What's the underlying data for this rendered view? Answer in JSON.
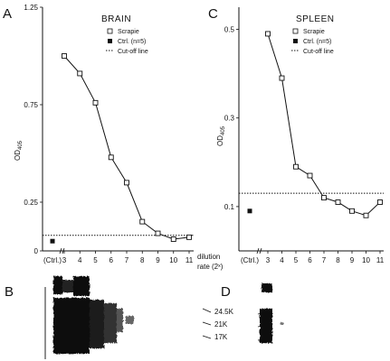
{
  "panels": {
    "a": {
      "letter": "A"
    },
    "b": {
      "letter": "B"
    },
    "c": {
      "letter": "C"
    },
    "d": {
      "letter": "D"
    }
  },
  "axis_note": {
    "line1": "dilution",
    "line2": "rate (2ˣ)"
  },
  "blot_markers": [
    "24.5K",
    "21K",
    "17K"
  ],
  "chart_data": [
    {
      "type": "line",
      "title": "BRAIN",
      "ylabel": "OD405",
      "ylabel_main": "OD",
      "ylabel_sub": "405",
      "xlabel": "dilution rate (2ˣ)",
      "ylim": [
        0,
        1.25
      ],
      "yticks": [
        "1.25",
        "0.75",
        "0.25",
        "0"
      ],
      "x_ctrl_label": "(Ctrl.)",
      "x_labels": [
        "3",
        "4",
        "5",
        "6",
        "7",
        "8",
        "9",
        "10",
        "11"
      ],
      "grid": false,
      "legend": {
        "position": "top-right",
        "entries": [
          "Scrapie",
          "Ctrl. (n=5)",
          "Cut-off line"
        ]
      },
      "series": [
        {
          "name": "Scrapie",
          "x": [
            3,
            4,
            5,
            6,
            7,
            8,
            9,
            10,
            11
          ],
          "values": [
            1.0,
            0.91,
            0.76,
            0.48,
            0.35,
            0.15,
            0.09,
            0.06,
            0.07
          ]
        },
        {
          "name": "Ctrl. (n=5)",
          "x": [
            "Ctrl."
          ],
          "values": [
            0.05
          ]
        }
      ],
      "cutoff": {
        "name": "Cut-off line",
        "value": 0.08
      }
    },
    {
      "type": "line",
      "title": "SPLEEN",
      "ylabel": "OD405",
      "ylabel_main": "OD",
      "ylabel_sub": "405",
      "xlabel": "dilution rate (2ˣ)",
      "ylim": [
        0,
        0.55
      ],
      "yticks": [
        "0.5",
        "0.3",
        "0.1"
      ],
      "x_ctrl_label": "(Ctrl.)",
      "x_labels": [
        "3",
        "4",
        "5",
        "6",
        "7",
        "8",
        "9",
        "10",
        "11"
      ],
      "grid": false,
      "legend": {
        "position": "top-right",
        "entries": [
          "Scrapie",
          "Ctrl. (n=5)",
          "Cut-off line"
        ]
      },
      "series": [
        {
          "name": "Scrapie",
          "x": [
            3,
            4,
            5,
            6,
            7,
            8,
            9,
            10,
            11
          ],
          "values": [
            0.49,
            0.39,
            0.19,
            0.17,
            0.12,
            0.11,
            0.09,
            0.08,
            0.11
          ]
        },
        {
          "name": "Ctrl. (n=5)",
          "x": [
            "Ctrl."
          ],
          "values": [
            0.09
          ]
        }
      ],
      "cutoff": {
        "name": "Cut-off line",
        "value": 0.13
      }
    }
  ]
}
